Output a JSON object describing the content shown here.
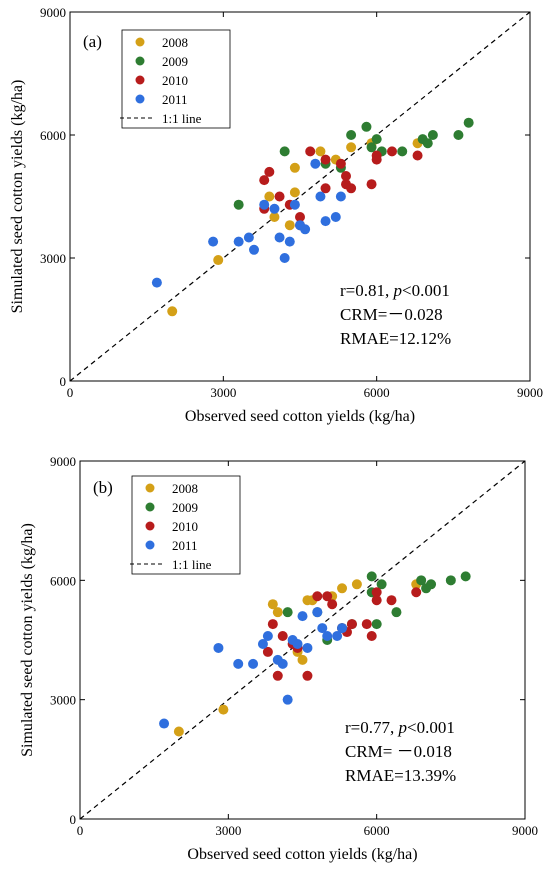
{
  "colors": {
    "2008": "#d4a017",
    "2009": "#2e7d32",
    "2010": "#b71c1c",
    "2011": "#2f6fde"
  },
  "chart_data": [
    {
      "type": "scatter",
      "panel": "(a)",
      "xlabel": "Observed seed cotton yields (kg/ha)",
      "ylabel": "Simulated seed cotton yields (kg/ha)",
      "xlim": [
        0,
        9000
      ],
      "ylim": [
        0,
        9000
      ],
      "xticks": [
        "0",
        "3000",
        "6000",
        "9000"
      ],
      "yticks": [
        "0",
        "3000",
        "6000",
        "9000"
      ],
      "legend_position": "top-left",
      "line_label": "1:1 line",
      "stats": {
        "r": "r=0.81, ",
        "p_prefix": "p",
        "p_suffix": "<0.001",
        "crm": "CRM=－0.028",
        "rmae": "RMAE=12.12%"
      },
      "series": [
        {
          "name": "2008",
          "points": [
            [
              2000,
              1700
            ],
            [
              2900,
              2950
            ],
            [
              3900,
              4500
            ],
            [
              4000,
              4000
            ],
            [
              4300,
              3800
            ],
            [
              4400,
              5200
            ],
            [
              4900,
              5600
            ],
            [
              5200,
              5400
            ],
            [
              5500,
              5700
            ],
            [
              5900,
              5800
            ],
            [
              6800,
              5800
            ],
            [
              4400,
              4600
            ]
          ]
        },
        {
          "name": "2009",
          "points": [
            [
              3300,
              4300
            ],
            [
              4200,
              5600
            ],
            [
              5000,
              5300
            ],
            [
              5300,
              5200
            ],
            [
              5500,
              6000
            ],
            [
              5800,
              6200
            ],
            [
              5900,
              5700
            ],
            [
              6000,
              5900
            ],
            [
              6100,
              5600
            ],
            [
              6500,
              5600
            ],
            [
              6900,
              5900
            ],
            [
              7000,
              5800
            ],
            [
              7100,
              6000
            ],
            [
              7600,
              6000
            ],
            [
              7800,
              6300
            ]
          ]
        },
        {
          "name": "2010",
          "points": [
            [
              3800,
              4200
            ],
            [
              3800,
              4900
            ],
            [
              3900,
              5100
            ],
            [
              4100,
              4500
            ],
            [
              4300,
              4300
            ],
            [
              4500,
              3800
            ],
            [
              4500,
              4000
            ],
            [
              4700,
              5600
            ],
            [
              5000,
              5400
            ],
            [
              5000,
              4700
            ],
            [
              5300,
              5300
            ],
            [
              5400,
              4800
            ],
            [
              5500,
              4700
            ],
            [
              5400,
              5000
            ],
            [
              5900,
              4800
            ],
            [
              6000,
              5500
            ],
            [
              6000,
              5400
            ],
            [
              6300,
              5600
            ],
            [
              6800,
              5500
            ]
          ]
        },
        {
          "name": "2011",
          "points": [
            [
              1700,
              2400
            ],
            [
              2800,
              3400
            ],
            [
              3300,
              3400
            ],
            [
              3500,
              3500
            ],
            [
              3600,
              3200
            ],
            [
              3800,
              4300
            ],
            [
              4000,
              4200
            ],
            [
              4100,
              3500
            ],
            [
              4200,
              3000
            ],
            [
              4300,
              3400
            ],
            [
              4400,
              4300
            ],
            [
              4500,
              3800
            ],
            [
              4600,
              3700
            ],
            [
              4800,
              5300
            ],
            [
              4900,
              4500
            ],
            [
              5000,
              3900
            ],
            [
              5200,
              4000
            ],
            [
              5300,
              4500
            ]
          ]
        }
      ]
    },
    {
      "type": "scatter",
      "panel": "(b)",
      "xlabel": "Observed seed cotton yields (kg/ha)",
      "ylabel": "Simulated seed cotton yields (kg/ha)",
      "xlim": [
        0,
        9000
      ],
      "ylim": [
        0,
        9000
      ],
      "xticks": [
        "0",
        "3000",
        "6000",
        "9000"
      ],
      "yticks": [
        "0",
        "3000",
        "6000",
        "9000"
      ],
      "legend_position": "top-left",
      "line_label": "1:1 line",
      "stats": {
        "r": "r=0.77, ",
        "p_prefix": "p",
        "p_suffix": "<0.001",
        "crm": "CRM= －0.018",
        "rmae": "RMAE=13.39%"
      },
      "series": [
        {
          "name": "2008",
          "points": [
            [
              2000,
              2200
            ],
            [
              2900,
              2750
            ],
            [
              3900,
              5400
            ],
            [
              4000,
              5200
            ],
            [
              4400,
              4200
            ],
            [
              4500,
              4000
            ],
            [
              4700,
              5500
            ],
            [
              5100,
              5600
            ],
            [
              5300,
              5800
            ],
            [
              5600,
              5900
            ],
            [
              6800,
              5900
            ],
            [
              4600,
              5500
            ]
          ]
        },
        {
          "name": "2009",
          "points": [
            [
              4200,
              5200
            ],
            [
              4800,
              5200
            ],
            [
              5000,
              4500
            ],
            [
              5300,
              4800
            ],
            [
              5500,
              4900
            ],
            [
              5900,
              6100
            ],
            [
              5900,
              5700
            ],
            [
              6100,
              5900
            ],
            [
              6000,
              4900
            ],
            [
              6400,
              5200
            ],
            [
              6900,
              6000
            ],
            [
              7000,
              5800
            ],
            [
              7100,
              5900
            ],
            [
              7500,
              6000
            ],
            [
              7800,
              6100
            ]
          ]
        },
        {
          "name": "2010",
          "points": [
            [
              3800,
              4200
            ],
            [
              3900,
              4900
            ],
            [
              4000,
              3600
            ],
            [
              4100,
              4600
            ],
            [
              4300,
              4400
            ],
            [
              4400,
              4300
            ],
            [
              4600,
              3600
            ],
            [
              4800,
              5600
            ],
            [
              5000,
              5600
            ],
            [
              5100,
              5400
            ],
            [
              5300,
              4800
            ],
            [
              5400,
              4700
            ],
            [
              5500,
              4900
            ],
            [
              5800,
              4900
            ],
            [
              5900,
              4600
            ],
            [
              6000,
              5700
            ],
            [
              6000,
              5500
            ],
            [
              6300,
              5500
            ],
            [
              6800,
              5700
            ]
          ]
        },
        {
          "name": "2011",
          "points": [
            [
              1700,
              2400
            ],
            [
              2800,
              4300
            ],
            [
              3200,
              3900
            ],
            [
              3500,
              3900
            ],
            [
              3700,
              4400
            ],
            [
              3800,
              4600
            ],
            [
              4000,
              4000
            ],
            [
              4100,
              3900
            ],
            [
              4200,
              3000
            ],
            [
              4300,
              4500
            ],
            [
              4400,
              4400
            ],
            [
              4500,
              5100
            ],
            [
              4600,
              4300
            ],
            [
              4800,
              5200
            ],
            [
              4900,
              4800
            ],
            [
              5000,
              4600
            ],
            [
              5200,
              4600
            ],
            [
              5300,
              4800
            ]
          ]
        }
      ]
    }
  ]
}
